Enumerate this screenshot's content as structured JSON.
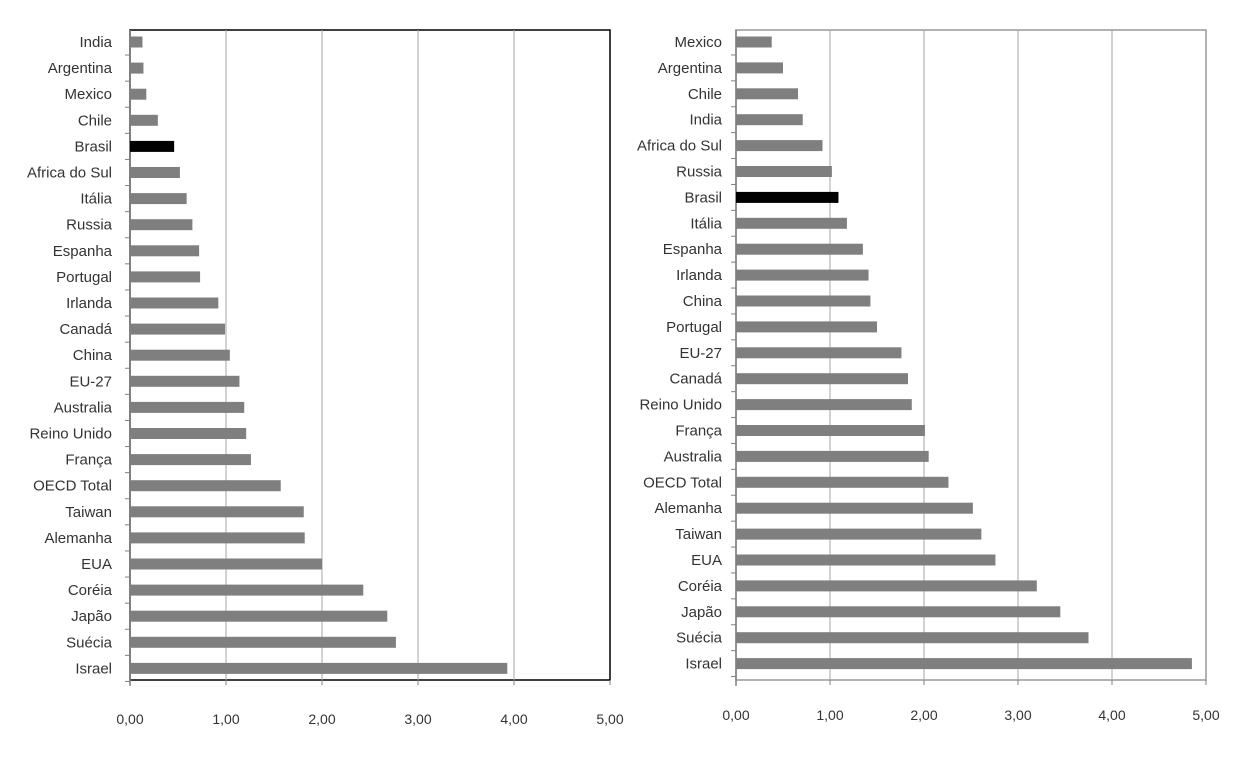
{
  "chart_data": [
    {
      "type": "bar",
      "orientation": "horizontal",
      "categories": [
        "India",
        "Argentina",
        "Mexico",
        "Chile",
        "Brasil",
        "Africa do Sul",
        "Itália",
        "Russia",
        "Espanha",
        "Portugal",
        "Irlanda",
        "Canadá",
        "China",
        "EU-27",
        "Australia",
        "Reino Unido",
        "França",
        "OECD Total",
        "Taiwan",
        "Alemanha",
        "EUA",
        "Coréia",
        "Japão",
        "Suécia",
        "Israel"
      ],
      "values": [
        0.13,
        0.14,
        0.17,
        0.29,
        0.46,
        0.52,
        0.59,
        0.65,
        0.72,
        0.73,
        0.92,
        0.99,
        1.04,
        1.14,
        1.19,
        1.21,
        1.26,
        1.57,
        1.81,
        1.82,
        2.0,
        2.43,
        2.68,
        2.77,
        3.93
      ],
      "highlight": "Brasil",
      "xlim": [
        0,
        5
      ],
      "xticks": [
        "0,00",
        "1,00",
        "2,00",
        "3,00",
        "4,00",
        "5,00"
      ],
      "colors": {
        "bar": "#7f7f7f",
        "highlight": "#000000",
        "grid": "#a6a6a6",
        "axis": "#808080",
        "frame": "#000000"
      },
      "grid": true
    },
    {
      "type": "bar",
      "orientation": "horizontal",
      "categories": [
        "Mexico",
        "Argentina",
        "Chile",
        "India",
        "Africa do Sul",
        "Russia",
        "Brasil",
        "Itália",
        "Espanha",
        "Irlanda",
        "China",
        "Portugal",
        "EU-27",
        "Canadá",
        "Reino Unido",
        "França",
        "Australia",
        "OECD Total",
        "Alemanha",
        "Taiwan",
        "EUA",
        "Coréia",
        "Japão",
        "Suécia",
        "Israel"
      ],
      "values": [
        0.38,
        0.5,
        0.66,
        0.71,
        0.92,
        1.02,
        1.09,
        1.18,
        1.35,
        1.41,
        1.43,
        1.5,
        1.76,
        1.83,
        1.87,
        2.01,
        2.05,
        2.26,
        2.52,
        2.61,
        2.76,
        3.2,
        3.45,
        3.75,
        4.85
      ],
      "highlight": "Brasil",
      "xlim": [
        0,
        5
      ],
      "xticks": [
        "0,00",
        "1,00",
        "2,00",
        "3,00",
        "4,00",
        "5,00"
      ],
      "colors": {
        "bar": "#7f7f7f",
        "highlight": "#000000",
        "grid": "#a6a6a6",
        "axis": "#808080",
        "frame": "#999999"
      },
      "grid": true
    }
  ]
}
